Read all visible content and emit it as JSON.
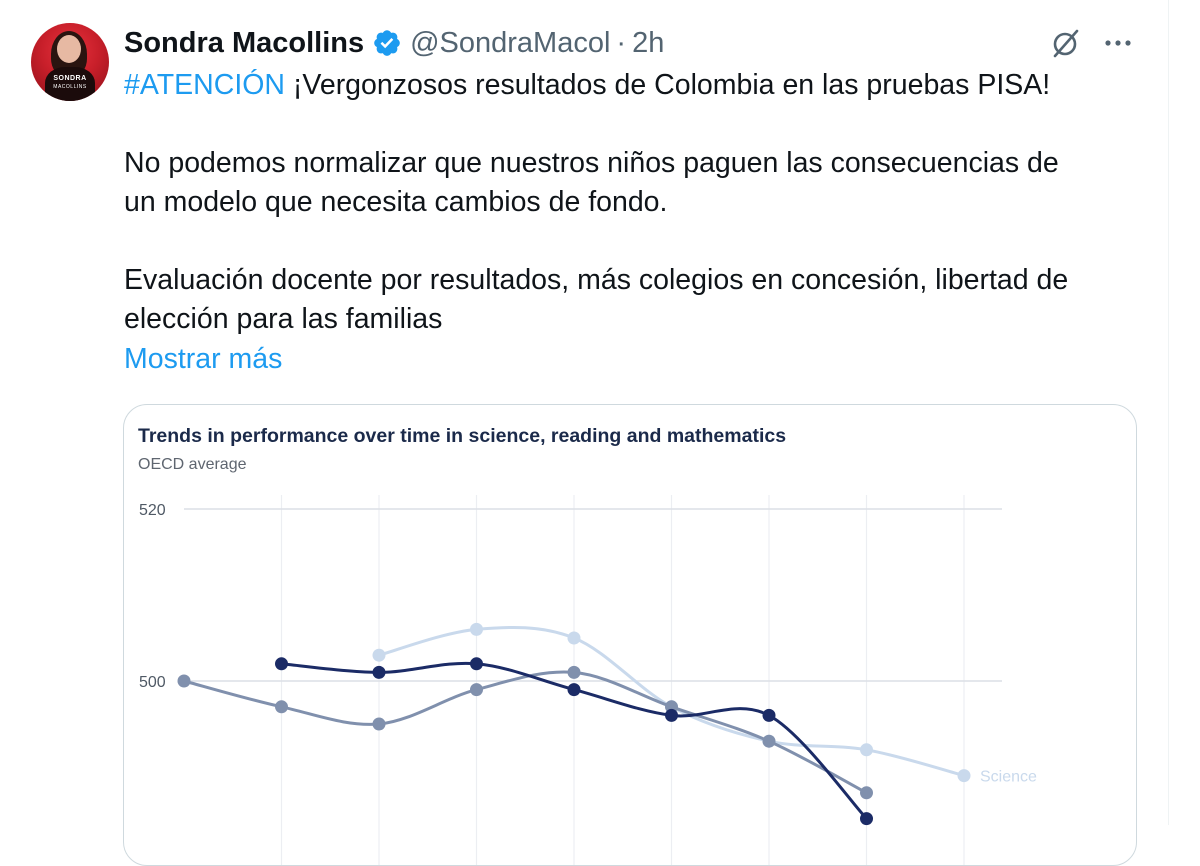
{
  "tweet": {
    "author_name": "Sondra Macollins",
    "handle": "@SondraMacol",
    "separator": "·",
    "time": "2h",
    "avatar_text": "SONDRA",
    "avatar_subtext": "MACOLLINS",
    "hashtag": "#ATENCIÓN",
    "line1_rest": " ¡Vergonzosos resultados de Colombia en las pruebas PISA!",
    "para2_line1": "No podemos normalizar que nuestros niños paguen las consecuencias de",
    "para2_line2": "un modelo que necesita cambios de fondo.",
    "para3_line1": "Evaluación docente por resultados, más colegios en concesión, libertad de",
    "para3_line2": "elección para las familias",
    "show_more": "Mostrar más"
  },
  "icons": {
    "verified": "verified-badge-icon",
    "grok": "grok-icon",
    "more": "more-options-icon"
  },
  "colors": {
    "link": "#1d9bf0",
    "verified": "#1d9bf0",
    "secondary_text": "#536471",
    "science": "#c9d9ec",
    "reading": "#8090ad",
    "mathematics": "#1b2b66"
  },
  "chart_data": {
    "type": "line",
    "title": "Trends in performance over time in science, reading and mathematics",
    "subtitle": "OECD average",
    "yticks": [
      520,
      500
    ],
    "ylim": [
      488,
      523
    ],
    "x": [
      0,
      1,
      2,
      3,
      4,
      5,
      6,
      7,
      8
    ],
    "series": [
      {
        "name": "Science",
        "values": [
          null,
          null,
          503,
          506,
          505,
          497,
          493,
          492,
          489
        ]
      },
      {
        "name": "",
        "values": [
          500,
          497,
          495,
          499,
          501,
          497,
          493,
          487,
          null
        ]
      },
      {
        "name": "",
        "values": [
          null,
          502,
          501,
          502,
          499,
          496,
          496,
          484,
          null
        ]
      }
    ],
    "grid": true
  }
}
